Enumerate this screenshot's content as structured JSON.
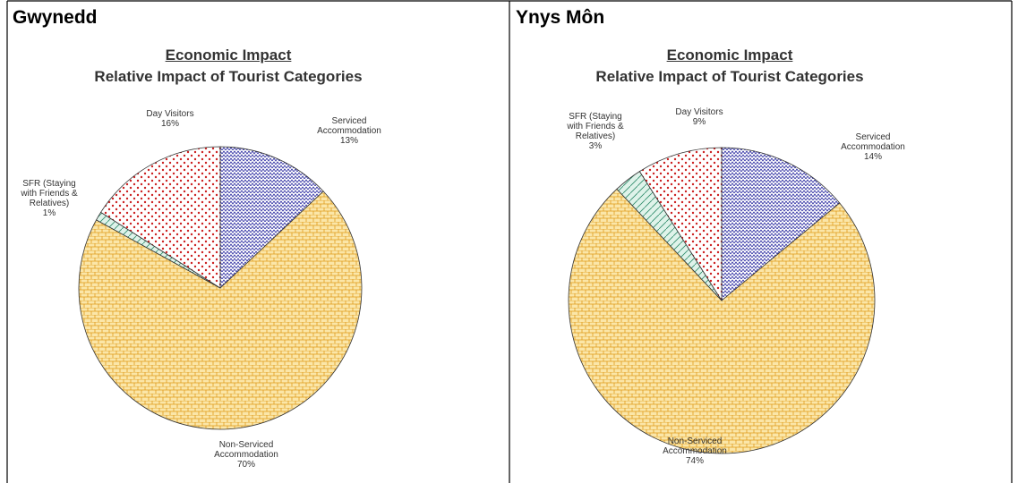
{
  "table": {
    "headers": [
      "Gwynedd",
      "Ynys Môn"
    ]
  },
  "chart_data": [
    {
      "type": "pie",
      "title": "Economic Impact",
      "subtitle": "Relative Impact of Tourist Categories",
      "categories": [
        "Serviced Accommodation",
        "Non-Serviced Accommodation",
        "SFR (Staying with Friends & Relatives)",
        "Day Visitors"
      ],
      "values": [
        13,
        70,
        1,
        16
      ],
      "value_labels": [
        "13%",
        "70%",
        "1%",
        "16%"
      ],
      "colors": [
        "#2b2ba0",
        "#e09a1a",
        "#2e8b6a",
        "#cc2020"
      ]
    },
    {
      "type": "pie",
      "title": "Economic Impact",
      "subtitle": "Relative Impact of Tourist Categories",
      "categories": [
        "Serviced Accommodation",
        "Non-Serviced Accommodation",
        "SFR (Staying with Friends & Relatives)",
        "Day Visitors"
      ],
      "values": [
        14,
        74,
        3,
        9
      ],
      "value_labels": [
        "14%",
        "74%",
        "3%",
        "9%"
      ],
      "colors": [
        "#2b2ba0",
        "#e09a1a",
        "#2e8b6a",
        "#cc2020"
      ]
    }
  ]
}
